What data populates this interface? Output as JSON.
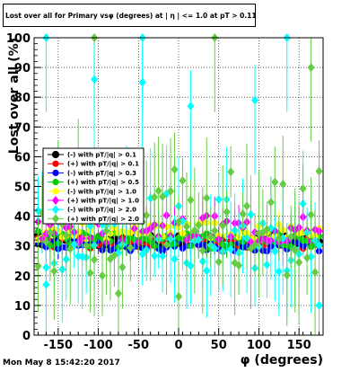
{
  "title": "Lost over all for Primary vsφ (degrees) at | η | <= 1.0 at pT > 0.11",
  "footer": "Mon May  8 15:42:20 2017",
  "chart_data": {
    "type": "scatter",
    "title": "Lost over all for Primary vsφ (degrees) at | η | <= 1.0 at pT > 0.11",
    "xlabel": "φ (degrees)",
    "ylabel": "Lost over all (%)",
    "xlim": [
      -180,
      180
    ],
    "ylim": [
      0,
      100
    ],
    "xticks": [
      "-150",
      "-100",
      "-50",
      "0",
      "50",
      "100",
      "150"
    ],
    "xtick_values": [
      -150,
      -100,
      -50,
      0,
      50,
      100,
      150
    ],
    "yticks": [
      "0",
      "10",
      "20",
      "30",
      "40",
      "50",
      "60",
      "70",
      "80",
      "90",
      "100"
    ],
    "ytick_values": [
      0,
      10,
      20,
      30,
      40,
      50,
      60,
      70,
      80,
      90,
      100
    ],
    "grid": true,
    "legend_position": "center-left",
    "series": [
      {
        "legend_label": "(-) with pT/|q| > 0.1",
        "color": "#000000",
        "marker": "circle",
        "base": 32,
        "spread": 2,
        "err": 3,
        "seed": 11
      },
      {
        "legend_label": "(+) with pT/|q| > 0.1",
        "color": "#ff0000",
        "marker": "circle",
        "base": 31,
        "spread": 2,
        "err": 3,
        "seed": 23
      },
      {
        "legend_label": "(-) with pT/|q| > 0.3",
        "color": "#0000ff",
        "marker": "circle",
        "base": 30,
        "spread": 2,
        "err": 3,
        "seed": 37
      },
      {
        "legend_label": "(+) with pT/|q| > 0.5",
        "color": "#00cc00",
        "marker": "circle",
        "base": 32,
        "spread": 3,
        "err": 4,
        "seed": 41
      },
      {
        "legend_label": "(-) with pT/|q| > 1.0",
        "color": "#ffff00",
        "marker": "circle",
        "base": 35,
        "spread": 3,
        "err": 4,
        "seed": 53
      },
      {
        "legend_label": "(+) with pT/|q| > 1.0",
        "color": "#ff00ff",
        "marker": "diamond",
        "base": 36,
        "spread": 5,
        "err": 7,
        "seed": 67
      },
      {
        "legend_label": "(-) with pT/|q| > 2.0",
        "color": "#00ffff",
        "marker": "diamond",
        "base": 35,
        "spread": 14,
        "err": 16,
        "seed": 79
      },
      {
        "legend_label": "(+) with pT/|q| > 2.0",
        "color": "#66cc44",
        "marker": "diamond",
        "base": 38,
        "spread": 18,
        "err": 18,
        "seed": 83
      }
    ],
    "highlights": [
      {
        "series": 6,
        "x": -165,
        "y": 100
      },
      {
        "series": 7,
        "x": -105,
        "y": 100
      },
      {
        "series": 6,
        "x": -45,
        "y": 100
      },
      {
        "series": 7,
        "x": 45,
        "y": 100
      },
      {
        "series": 6,
        "x": 135,
        "y": 100
      },
      {
        "series": 6,
        "x": -105,
        "y": 86
      },
      {
        "series": 6,
        "x": -45,
        "y": 85
      },
      {
        "series": 6,
        "x": 15,
        "y": 77
      },
      {
        "series": 6,
        "x": 95,
        "y": 79
      },
      {
        "series": 7,
        "x": 165,
        "y": 90
      },
      {
        "series": 6,
        "x": -165,
        "y": 17
      },
      {
        "series": 6,
        "x": 175,
        "y": 10
      },
      {
        "series": 7,
        "x": 0,
        "y": 13
      },
      {
        "series": 7,
        "x": -75,
        "y": 14
      }
    ]
  },
  "colors": {
    "frame": "#000000",
    "grid": "#000000",
    "background": "#ffffff"
  }
}
